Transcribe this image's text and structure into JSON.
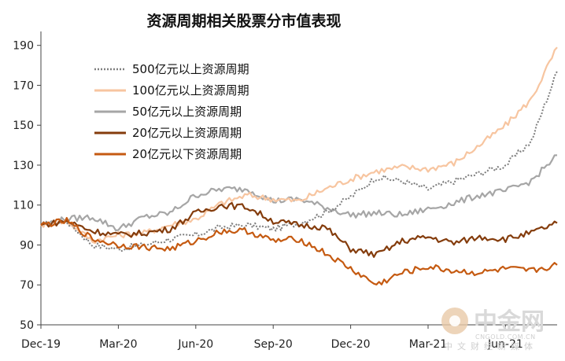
{
  "chart_data": {
    "type": "line",
    "title": "资源周期相关股票分市值表现",
    "xlabel": "",
    "ylabel": "",
    "ylim": [
      50,
      195
    ],
    "yticks": [
      50,
      70,
      90,
      110,
      130,
      150,
      170,
      190
    ],
    "xticks": [
      "Dec-19",
      "Mar-20",
      "Jun-20",
      "Sep-20",
      "Dec-20",
      "Mar-21",
      "Jun-21"
    ],
    "legend_position": "top-left",
    "grid": false,
    "x": [
      "Dec-19",
      "Jan-20",
      "Feb-20",
      "Mar-20",
      "Apr-20",
      "May-20",
      "Jun-20",
      "Jul-20",
      "Aug-20",
      "Sep-20",
      "Oct-20",
      "Nov-20",
      "Dec-20",
      "Jan-21",
      "Feb-21",
      "Mar-21",
      "Apr-21",
      "May-21",
      "Jun-21",
      "Jul-21",
      "Aug-21"
    ],
    "series": [
      {
        "name": "500亿元以上资源周期",
        "color": "#7f7f7f",
        "style": "dotted",
        "values": [
          100,
          102,
          90,
          88,
          90,
          93,
          95,
          99,
          100,
          98,
          101,
          106,
          114,
          124,
          122,
          118,
          122,
          126,
          130,
          142,
          177
        ]
      },
      {
        "name": "100亿元以上资源周期",
        "color": "#f7c5a0",
        "style": "solid",
        "values": [
          100,
          102,
          92,
          95,
          96,
          100,
          103,
          111,
          115,
          113,
          112,
          118,
          123,
          127,
          129,
          128,
          131,
          140,
          150,
          163,
          189
        ]
      },
      {
        "name": "50亿元以上资源周期",
        "color": "#a6a6a6",
        "style": "solid",
        "values": [
          100,
          103,
          104,
          98,
          104,
          106,
          115,
          118,
          118,
          112,
          113,
          109,
          105,
          106,
          105,
          108,
          111,
          115,
          117,
          122,
          135
        ]
      },
      {
        "name": "20亿元以上资源周期",
        "color": "#843c0c",
        "style": "solid",
        "values": [
          100,
          102,
          97,
          95,
          96,
          98,
          106,
          110,
          109,
          102,
          100,
          99,
          88,
          85,
          92,
          94,
          91,
          94,
          93,
          96,
          101
        ]
      },
      {
        "name": "20亿元以下资源周期",
        "color": "#c55a11",
        "style": "solid",
        "values": [
          100,
          102,
          93,
          90,
          89,
          88,
          92,
          97,
          97,
          92,
          93,
          86,
          78,
          70,
          76,
          79,
          77,
          76,
          78,
          77,
          80
        ]
      }
    ]
  },
  "watermark": {
    "brand": "中金网",
    "domain": "CNGOLD.COM.CN",
    "tagline": "中文财经新媒体"
  }
}
